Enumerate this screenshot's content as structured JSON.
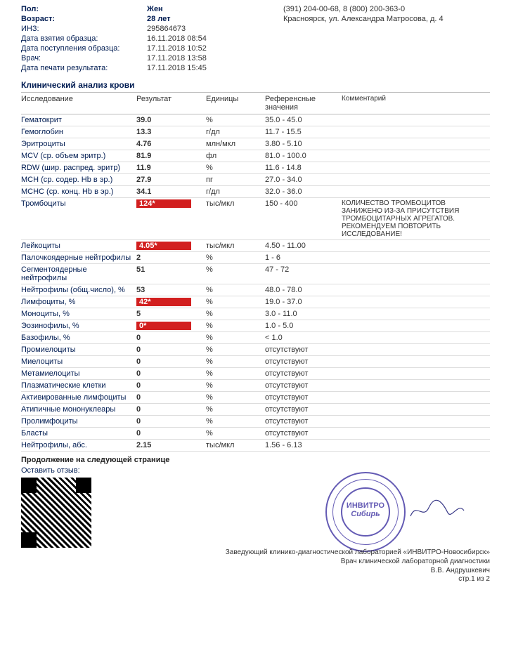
{
  "header": {
    "rows": [
      {
        "label": "Пол:",
        "value": "Жен",
        "bold": true,
        "right": "(391) 204-00-68, 8 (800) 200-363-0"
      },
      {
        "label": "Возраст:",
        "value": "28 лет",
        "bold": true,
        "right": "Красноярск, ул. Александра Матросова, д. 4"
      },
      {
        "label": "ИНЗ:",
        "value": "295864673",
        "bold": false,
        "right": ""
      },
      {
        "label": "Дата взятия образца:",
        "value": "16.11.2018 08:54",
        "bold": false,
        "right": ""
      },
      {
        "label": "Дата поступления образца:",
        "value": "17.11.2018 10:52",
        "bold": false,
        "right": ""
      },
      {
        "label": "Врач:",
        "value": "17.11.2018 13:58",
        "bold": false,
        "right": ""
      },
      {
        "label": "Дата печати результата:",
        "value": "17.11.2018 15:45",
        "bold": false,
        "right": ""
      }
    ]
  },
  "section_title": "Клинический анализ крови",
  "columns": {
    "name": "Исследование",
    "result": "Результат",
    "unit": "Единицы",
    "ref": "Референсные значения",
    "comment": "Комментарий"
  },
  "rows": [
    {
      "name": "Гематокрит",
      "result": "39.0",
      "unit": "%",
      "ref": "35.0 - 45.0",
      "comment": "",
      "flag": false
    },
    {
      "name": "Гемоглобин",
      "result": "13.3",
      "unit": "г/дл",
      "ref": "11.7 - 15.5",
      "comment": "",
      "flag": false
    },
    {
      "name": "Эритроциты",
      "result": "4.76",
      "unit": "млн/мкл",
      "ref": "3.80 - 5.10",
      "comment": "",
      "flag": false
    },
    {
      "name": "MCV (ср. объем эритр.)",
      "result": "81.9",
      "unit": "фл",
      "ref": "81.0 - 100.0",
      "comment": "",
      "flag": false
    },
    {
      "name": "RDW (шир. распред. эритр)",
      "result": "11.9",
      "unit": "%",
      "ref": "11.6 - 14.8",
      "comment": "",
      "flag": false
    },
    {
      "name": "MCH (ср. содер. Hb в эр.)",
      "result": "27.9",
      "unit": "пг",
      "ref": "27.0 - 34.0",
      "comment": "",
      "flag": false
    },
    {
      "name": "MCHC (ср. конц. Hb в эр.)",
      "result": "34.1",
      "unit": "г/дл",
      "ref": "32.0 - 36.0",
      "comment": "",
      "flag": false
    },
    {
      "name": "Тромбоциты",
      "result": "124*",
      "unit": "тыс/мкл",
      "ref": "150 - 400",
      "comment": "КОЛИЧЕСТВО ТРОМБОЦИТОВ ЗАНИЖЕНО ИЗ-ЗА ПРИСУТСТВИЯ ТРОМБОЦИТАРНЫХ АГРЕГАТОВ. РЕКОМЕНДУЕМ ПОВТОРИТЬ ИССЛЕДОВАНИЕ!",
      "flag": true
    },
    {
      "name": "Лейкоциты",
      "result": "4.05*",
      "unit": "тыс/мкл",
      "ref": "4.50 - 11.00",
      "comment": "",
      "flag": true
    },
    {
      "name": "Палочкоядерные нейтрофилы",
      "result": "2",
      "unit": "%",
      "ref": "1 - 6",
      "comment": "",
      "flag": false
    },
    {
      "name": "Сегментоядерные нейтрофилы",
      "result": "51",
      "unit": "%",
      "ref": "47 - 72",
      "comment": "",
      "flag": false
    },
    {
      "name": "Нейтрофилы (общ.число), %",
      "result": "53",
      "unit": "%",
      "ref": "48.0 - 78.0",
      "comment": "",
      "flag": false
    },
    {
      "name": "Лимфоциты, %",
      "result": "42*",
      "unit": "%",
      "ref": "19.0 - 37.0",
      "comment": "",
      "flag": true
    },
    {
      "name": "Моноциты, %",
      "result": "5",
      "unit": "%",
      "ref": "3.0 - 11.0",
      "comment": "",
      "flag": false
    },
    {
      "name": "Эозинофилы, %",
      "result": "0*",
      "unit": "%",
      "ref": "1.0 - 5.0",
      "comment": "",
      "flag": true
    },
    {
      "name": "Базофилы, %",
      "result": "0",
      "unit": "%",
      "ref": "< 1.0",
      "comment": "",
      "flag": false
    },
    {
      "name": "Промиелоциты",
      "result": "0",
      "unit": "%",
      "ref": "отсутствуют",
      "comment": "",
      "flag": false
    },
    {
      "name": "Миелоциты",
      "result": "0",
      "unit": "%",
      "ref": "отсутствуют",
      "comment": "",
      "flag": false
    },
    {
      "name": "Метамиелоциты",
      "result": "0",
      "unit": "%",
      "ref": "отсутствуют",
      "comment": "",
      "flag": false
    },
    {
      "name": "Плазматические клетки",
      "result": "0",
      "unit": "%",
      "ref": "отсутствуют",
      "comment": "",
      "flag": false
    },
    {
      "name": "Активированные лимфоциты",
      "result": "0",
      "unit": "%",
      "ref": "отсутствуют",
      "comment": "",
      "flag": false
    },
    {
      "name": "Атипичные мононуклеары",
      "result": "0",
      "unit": "%",
      "ref": "отсутствуют",
      "comment": "",
      "flag": false
    },
    {
      "name": "Пролимфоциты",
      "result": "0",
      "unit": "%",
      "ref": "отсутствуют",
      "comment": "",
      "flag": false
    },
    {
      "name": "Бласты",
      "result": "0",
      "unit": "%",
      "ref": "отсутствуют",
      "comment": "",
      "flag": false
    },
    {
      "name": "Нейтрофилы, абс.",
      "result": "2.15",
      "unit": "тыс/мкл",
      "ref": "1.56 - 6.13",
      "comment": "",
      "flag": false
    }
  ],
  "continuation": "Продолжение на следующей странице",
  "feedback": "Оставить отзыв:",
  "stamp": {
    "line1": "ИНВИТРО",
    "line2": "Сибирь"
  },
  "footer": {
    "line1": "Заведующий клинико-диагностической лабораторией «ИНВИТРО-Новосибирск»",
    "line2": "Врач клинической лабораторной диагностики",
    "line3": "В.В. Андрушкевич"
  },
  "page_num": "стр.1 из 2",
  "colors": {
    "brand": "#001c52",
    "flag_bg": "#d21f1f",
    "stamp": "#4a3fa8"
  }
}
